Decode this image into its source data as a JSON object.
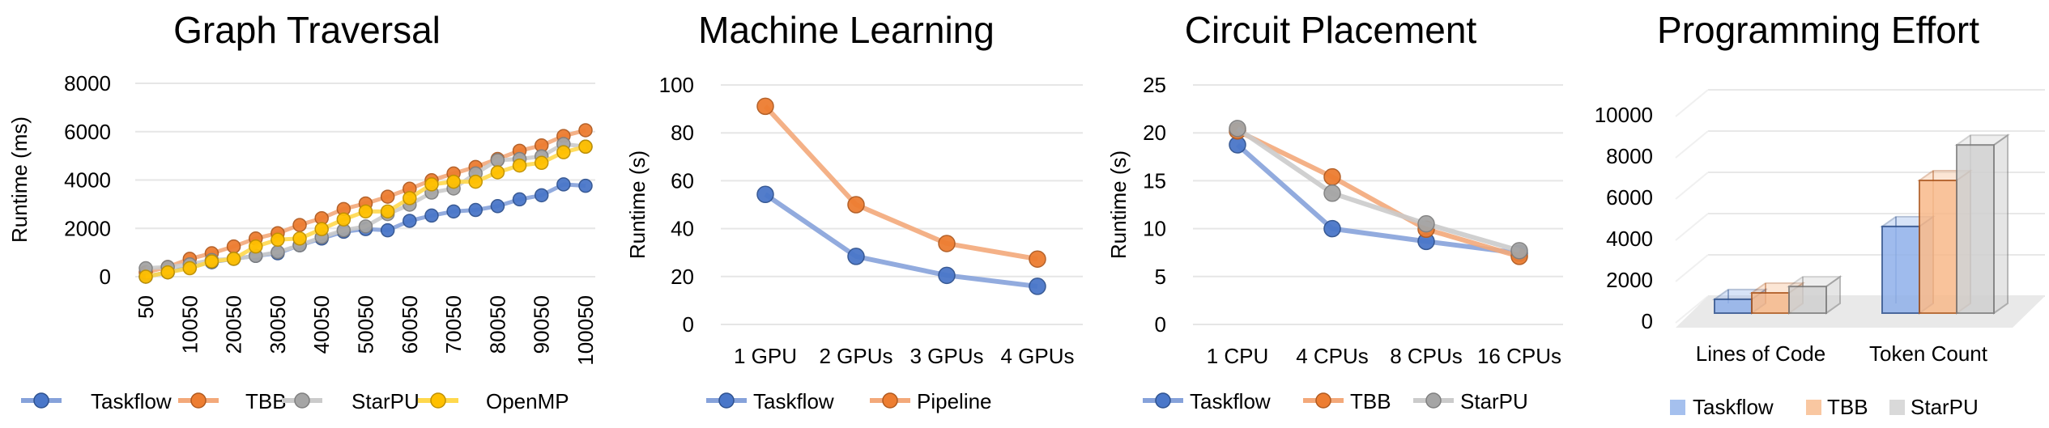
{
  "colors": {
    "Taskflow": {
      "line": "#86A2DA",
      "fill": "#4A77C9",
      "stroke": "#2F528F",
      "bar": "#8FB0EA"
    },
    "TBB": {
      "line": "#F3A97A",
      "fill": "#ED7D31",
      "stroke": "#B05A20",
      "bar": "#F8B98A"
    },
    "StarPU": {
      "line": "#CBCBCB",
      "fill": "#A5A5A5",
      "stroke": "#7F7F7F",
      "bar": "#D0D0D0"
    },
    "OpenMP": {
      "line": "#FFD84D",
      "fill": "#FFC000",
      "stroke": "#BF9000"
    },
    "Pipeline": {
      "line": "#F3A97A",
      "fill": "#ED7D31",
      "stroke": "#B05A20"
    }
  },
  "chart_data": [
    {
      "type": "line",
      "title": "Graph Traversal",
      "xlabel": "",
      "ylabel": "Runtime (ms)",
      "ylim": [
        0,
        8000
      ],
      "yticks": [
        0,
        2000,
        4000,
        6000,
        8000
      ],
      "grid": true,
      "legend": "bottom",
      "x": [
        50,
        5050,
        10050,
        15050,
        20050,
        25050,
        30050,
        35050,
        40050,
        45050,
        50050,
        55050,
        60050,
        65050,
        70050,
        75050,
        80050,
        85050,
        90050,
        95050,
        100050
      ],
      "xtick_labels": [
        "50",
        "10050",
        "20050",
        "30050",
        "40050",
        "50050",
        "60050",
        "70050",
        "80050",
        "90050",
        "100050"
      ],
      "series": [
        {
          "name": "Taskflow",
          "values": [
            0,
            180,
            400,
            600,
            740,
            860,
            970,
            1300,
            1580,
            1860,
            1970,
            1920,
            2310,
            2530,
            2700,
            2760,
            2920,
            3200,
            3370,
            3820,
            3760
          ]
        },
        {
          "name": "TBB",
          "values": [
            180,
            400,
            740,
            970,
            1250,
            1580,
            1800,
            2140,
            2420,
            2800,
            3030,
            3310,
            3640,
            3990,
            4270,
            4540,
            4870,
            5210,
            5430,
            5820,
            6060
          ]
        },
        {
          "name": "StarPU",
          "values": [
            350,
            400,
            510,
            690,
            740,
            860,
            1020,
            1300,
            1640,
            1920,
            2080,
            2590,
            2980,
            3480,
            3650,
            4270,
            4820,
            4870,
            4980,
            5490,
            5380
          ]
        },
        {
          "name": "OpenMP",
          "values": [
            0,
            180,
            350,
            630,
            740,
            1250,
            1530,
            1580,
            1970,
            2370,
            2700,
            2700,
            3250,
            3820,
            3930,
            3930,
            4320,
            4600,
            4710,
            5150,
            5380
          ]
        }
      ]
    },
    {
      "type": "line",
      "title": "Machine Learning",
      "xlabel": "",
      "ylabel": "Runtime (s)",
      "ylim": [
        0,
        100
      ],
      "yticks": [
        0,
        20,
        40,
        60,
        80,
        100
      ],
      "grid": true,
      "legend": "bottom",
      "categories": [
        "1 GPU",
        "2 GPUs",
        "3 GPUs",
        "4 GPUs"
      ],
      "series": [
        {
          "name": "Taskflow",
          "values": [
            54.3,
            28.4,
            20.5,
            15.9
          ]
        },
        {
          "name": "Pipeline",
          "values": [
            91.1,
            50,
            33.8,
            27.3
          ]
        }
      ]
    },
    {
      "type": "line",
      "title": "Circuit Placement",
      "xlabel": "",
      "ylabel": "Runtime (s)",
      "ylim": [
        0,
        25
      ],
      "yticks": [
        0,
        5,
        10,
        15,
        20,
        25
      ],
      "grid": true,
      "legend": "bottom",
      "categories": [
        "1 CPU",
        "4 CPUs",
        "8 CPUs",
        "16 CPUs"
      ],
      "series": [
        {
          "name": "Taskflow",
          "values": [
            18.75,
            10.0,
            8.67,
            7.44
          ]
        },
        {
          "name": "TBB",
          "values": [
            20.2,
            15.4,
            9.94,
            7.1
          ]
        },
        {
          "name": "StarPU",
          "values": [
            20.45,
            13.7,
            10.5,
            7.7
          ]
        }
      ]
    },
    {
      "type": "bar",
      "subtype": "3d-clustered-column",
      "title": "Programming Effort",
      "xlabel": "",
      "ylabel": "",
      "ylim": [
        0,
        10000
      ],
      "yticks": [
        0,
        2000,
        4000,
        6000,
        8000,
        10000
      ],
      "grid": true,
      "legend": "bottom",
      "categories": [
        "Lines of Code",
        "Token Count"
      ],
      "series": [
        {
          "name": "Taskflow",
          "values": [
            670,
            4200
          ]
        },
        {
          "name": "TBB",
          "values": [
            980,
            6430
          ]
        },
        {
          "name": "StarPU",
          "values": [
            1290,
            8150
          ]
        }
      ]
    }
  ]
}
